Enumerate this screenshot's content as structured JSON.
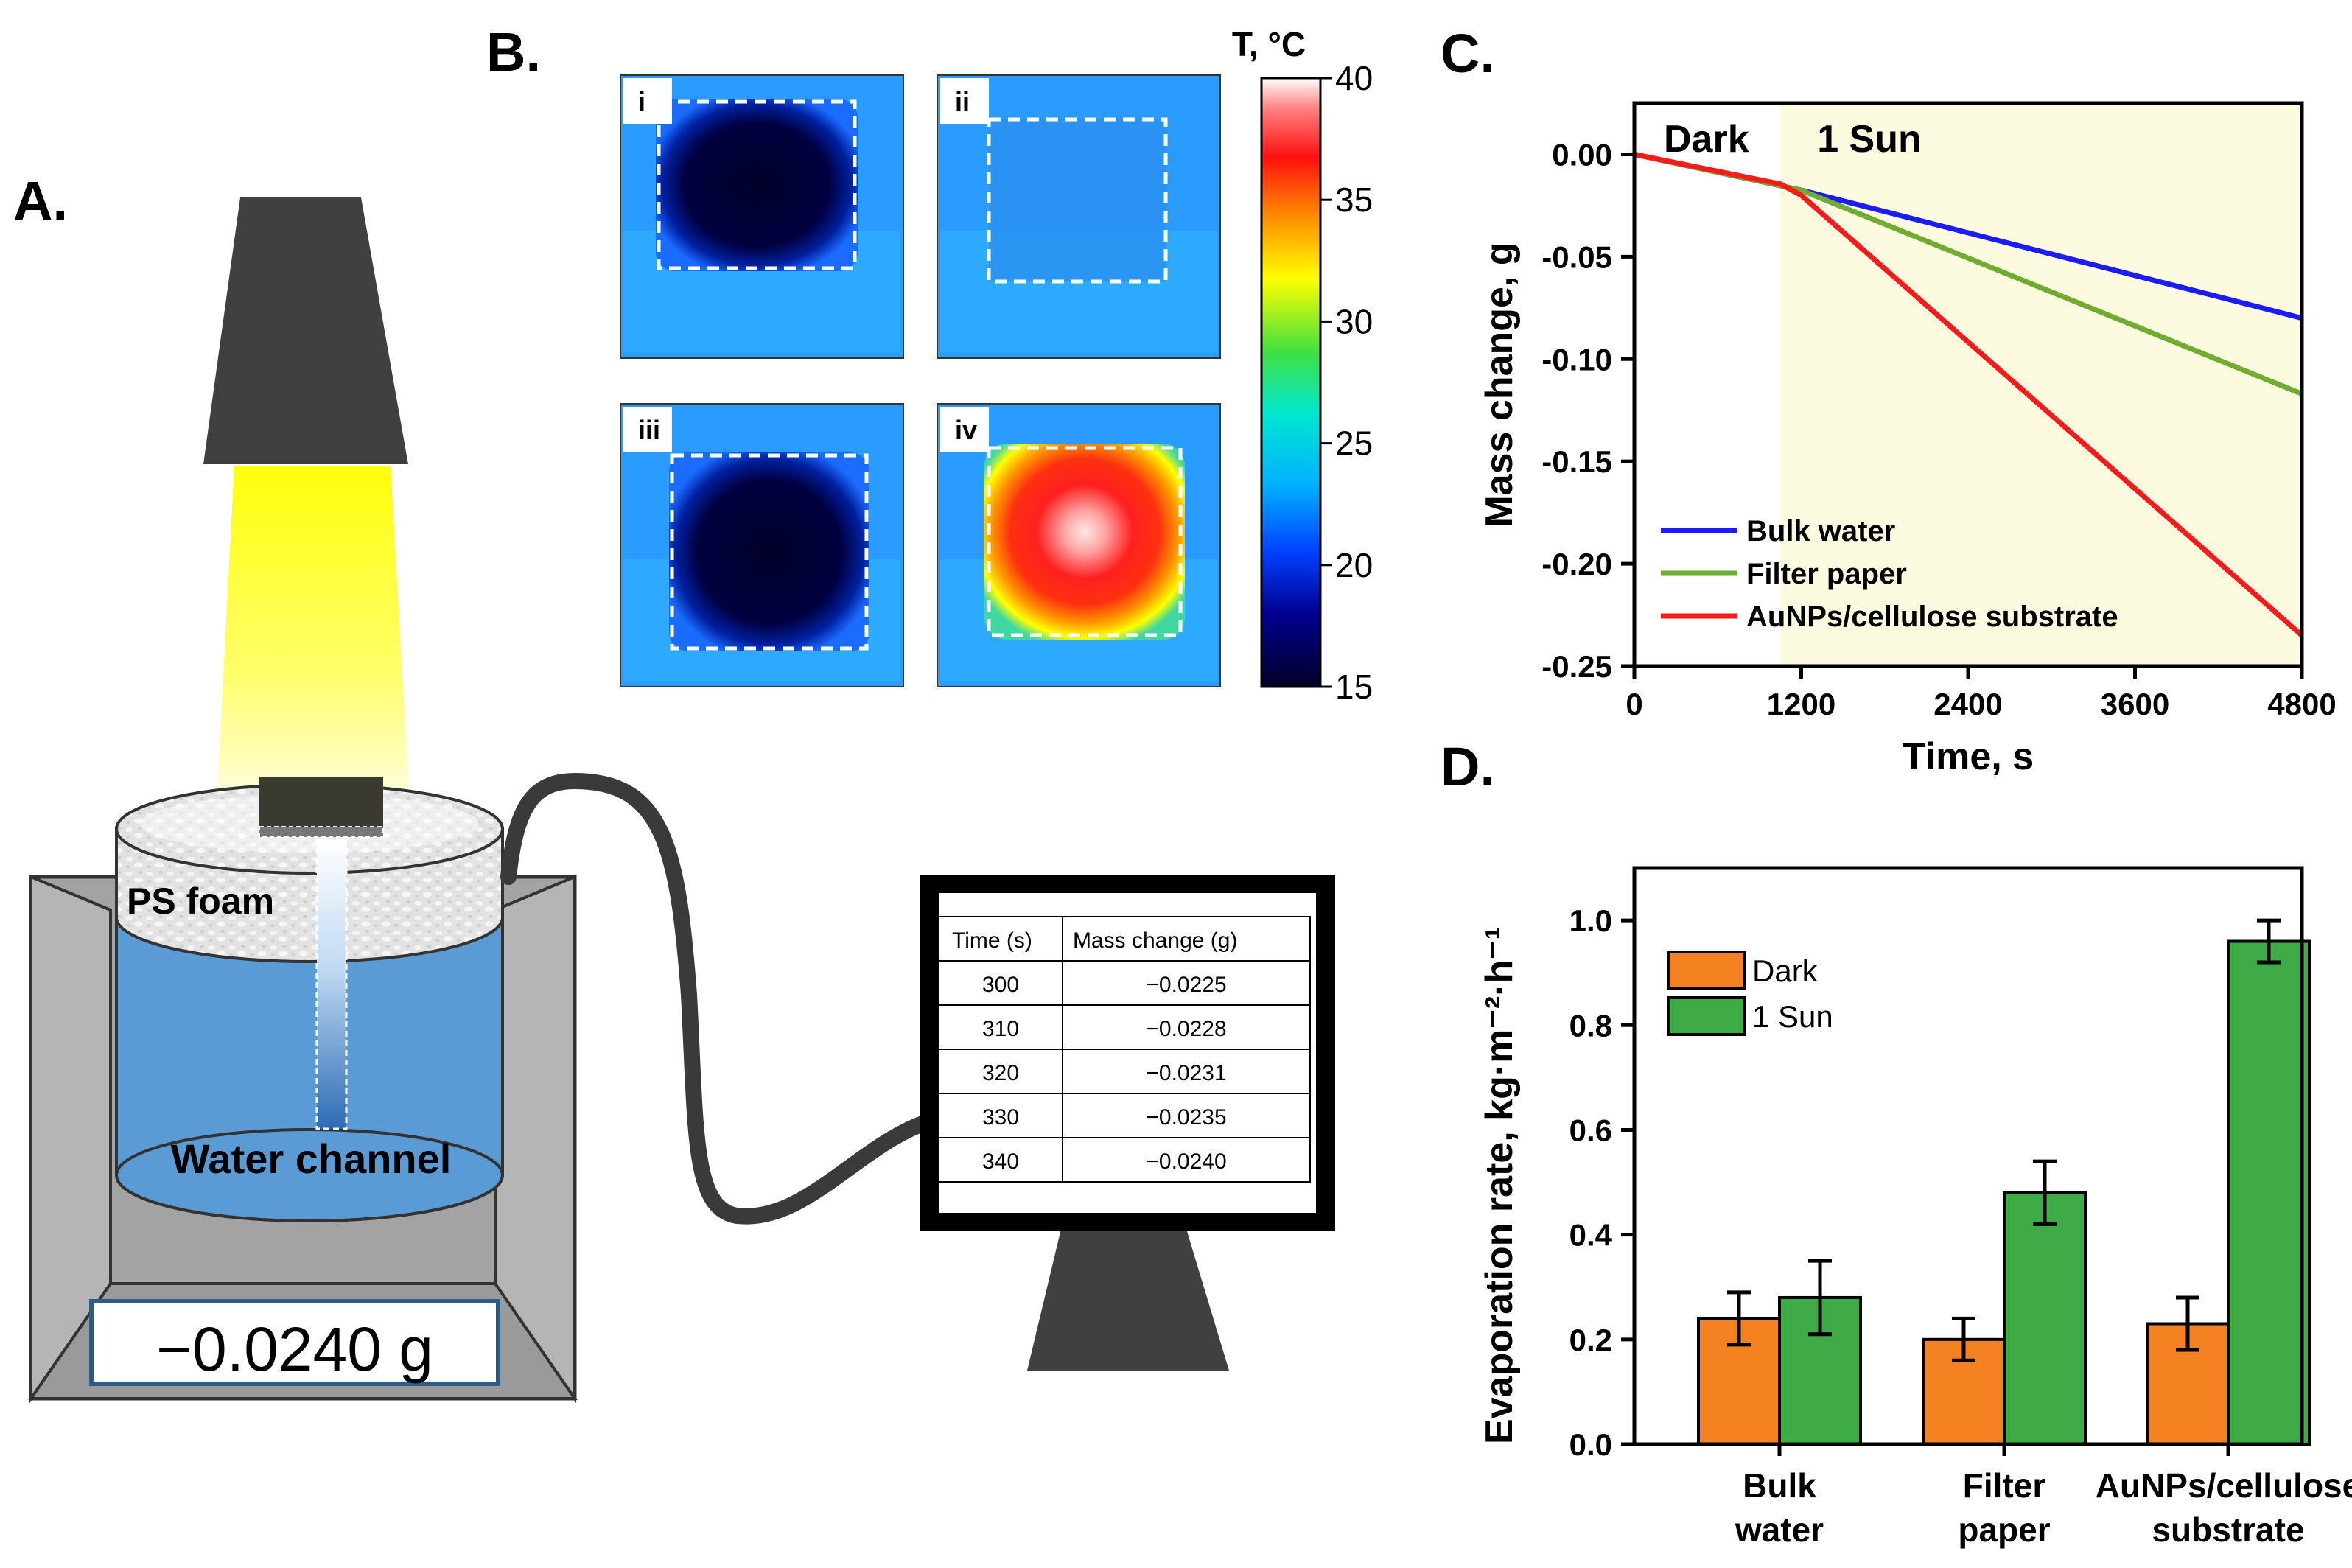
{
  "panels": {
    "a": "A.",
    "b": "B.",
    "c": "C.",
    "d": "D."
  },
  "setup": {
    "foam_label": "PS foam",
    "channel_label": "Water channel",
    "scale_reading": "−0.0240 g",
    "monitor_table": {
      "headers": [
        "Time (s)",
        "Mass change (g)"
      ],
      "rows": [
        [
          "300",
          "−0.0225"
        ],
        [
          "310",
          "−0.0228"
        ],
        [
          "320",
          "−0.0231"
        ],
        [
          "330",
          "−0.0235"
        ],
        [
          "340",
          "−0.0240"
        ]
      ]
    }
  },
  "thermal": {
    "colorbar_title": "T, °C",
    "colorbar_ticks": [
      "40",
      "35",
      "30",
      "25",
      "20",
      "15"
    ],
    "colorbar_range": [
      15,
      40
    ],
    "images": [
      {
        "label": "i",
        "appearance": "cold"
      },
      {
        "label": "ii",
        "appearance": "uniform"
      },
      {
        "label": "iii",
        "appearance": "cold"
      },
      {
        "label": "iv",
        "appearance": "hot"
      }
    ]
  },
  "colors": {
    "blue": "#1b1bff",
    "green": "#6fac2f",
    "red": "#ff1a1a",
    "orange": "#f58220",
    "bar_green": "#3fab47",
    "sun_shade": "#fcfbe0",
    "yellow_light": "#ffff2a"
  },
  "chart_data": [
    {
      "type": "line",
      "panel": "C",
      "xlabel": "Time, s",
      "ylabel": "Mass change, g",
      "xlim": [
        0,
        4800
      ],
      "ylim": [
        -0.25,
        0.025
      ],
      "xticks": [
        0,
        1200,
        2400,
        3600,
        4800
      ],
      "yticks": [
        0.0,
        -0.05,
        -0.1,
        -0.15,
        -0.2,
        -0.25
      ],
      "ytick_labels": [
        "0.00",
        "-0.05",
        "-0.10",
        "-0.15",
        "-0.20",
        "-0.25"
      ],
      "regions": [
        {
          "label": "Dark",
          "from": 0,
          "to": 1050
        },
        {
          "label": "1 Sun",
          "from": 1050,
          "to": 4800
        }
      ],
      "legend_position": "bottom-left",
      "series": [
        {
          "name": "Bulk water",
          "color": "#1b1bff",
          "x": [
            0,
            1200,
            4800
          ],
          "y": [
            0.0,
            -0.0175,
            -0.08
          ]
        },
        {
          "name": "Filter paper",
          "color": "#6fac2f",
          "x": [
            0,
            1200,
            4800
          ],
          "y": [
            0.0,
            -0.0175,
            -0.117
          ]
        },
        {
          "name": "AuNPs/cellulose substrate",
          "color": "#ff1a1a",
          "x": [
            0,
            1050,
            1200,
            4800
          ],
          "y": [
            0.0,
            -0.0145,
            -0.02,
            -0.235
          ]
        }
      ]
    },
    {
      "type": "bar",
      "panel": "D",
      "ylabel": "Evaporation rate, kg·m⁻²·h⁻¹",
      "ylim": [
        0,
        1.1
      ],
      "yticks": [
        0.0,
        0.2,
        0.4,
        0.6,
        0.8,
        1.0
      ],
      "ytick_labels": [
        "0.0",
        "0.2",
        "0.4",
        "0.6",
        "0.8",
        "1.0"
      ],
      "categories": [
        [
          "Bulk",
          "water"
        ],
        [
          "Filter",
          "paper"
        ],
        [
          "AuNPs/cellulose",
          "substrate"
        ]
      ],
      "legend_position": "top-left",
      "series": [
        {
          "name": "Dark",
          "color": "#f58220",
          "values": [
            0.24,
            0.2,
            0.23
          ],
          "errors": [
            0.05,
            0.04,
            0.05
          ]
        },
        {
          "name": "1 Sun",
          "color": "#3fab47",
          "values": [
            0.28,
            0.48,
            0.96
          ],
          "errors": [
            0.07,
            0.06,
            0.04
          ]
        }
      ]
    }
  ]
}
